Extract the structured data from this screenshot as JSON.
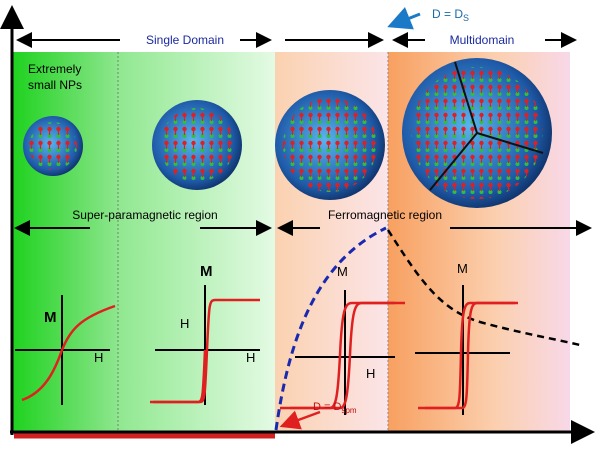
{
  "top": {
    "single_domain": "Single Domain",
    "multidomain": "Multidomain",
    "critical": {
      "label": "D = D",
      "sub": "S"
    }
  },
  "regions": {
    "extremely_small": [
      "Extremely",
      "small NPs"
    ],
    "superparamagnetic": "Super-paramagnetic region",
    "ferromagnetic": "Ferromagnetic region"
  },
  "loops": [
    {
      "m": "M",
      "h": "H"
    },
    {
      "m": "M",
      "h_left": "H",
      "h": "H"
    },
    {
      "m": "M",
      "h": "H"
    },
    {
      "m": "M"
    }
  ],
  "bottom": {
    "critical": {
      "label": "D = D",
      "sub": "spm"
    }
  }
}
